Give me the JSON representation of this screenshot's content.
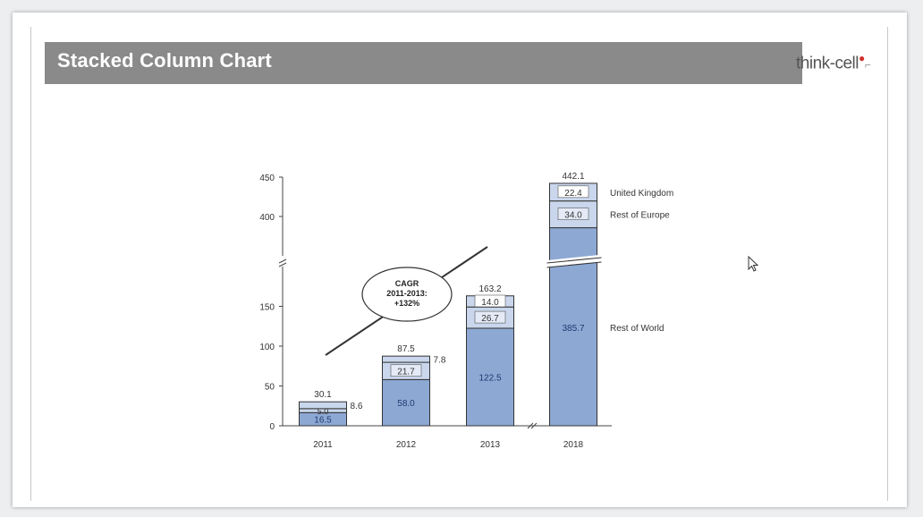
{
  "slide": {
    "title": "Stacked Column Chart",
    "logo_text": "think-cell"
  },
  "annotation": {
    "cagr_lines": [
      "CAGR",
      "2011-2013:",
      "+132%"
    ]
  },
  "colors": {
    "bar_dark": "#8ea8d4",
    "bar_light": "#c9d6ec",
    "bar_stroke": "#333333",
    "title_bar": "#8a8a8a"
  },
  "chart_data": {
    "type": "bar",
    "stacked": true,
    "categories": [
      "2011",
      "2012",
      "2013",
      "2018"
    ],
    "series": [
      {
        "name": "Rest of World",
        "values": [
          16.5,
          58.0,
          122.5,
          385.7
        ],
        "labels": [
          "16.5",
          "58.0",
          "122.5",
          "385.7"
        ]
      },
      {
        "name": "Rest of Europe",
        "values": [
          5.0,
          21.7,
          26.7,
          34.0
        ],
        "labels": [
          "5.0",
          "21.7",
          "26.7",
          "34.0"
        ]
      },
      {
        "name": "United Kingdom",
        "values": [
          8.6,
          7.8,
          14.0,
          22.4
        ],
        "labels": [
          "8.6",
          "7.8",
          "14.0",
          "22.4"
        ]
      }
    ],
    "totals": [
      "30.1",
      "87.5",
      "163.2",
      "442.1"
    ],
    "y_ticks": [
      "0",
      "50",
      "100",
      "150",
      "400",
      "450"
    ],
    "ylim": [
      0,
      450
    ],
    "axis_break": true,
    "legend_placement": "right of last column",
    "grid": false,
    "xlabel": "",
    "ylabel": ""
  }
}
